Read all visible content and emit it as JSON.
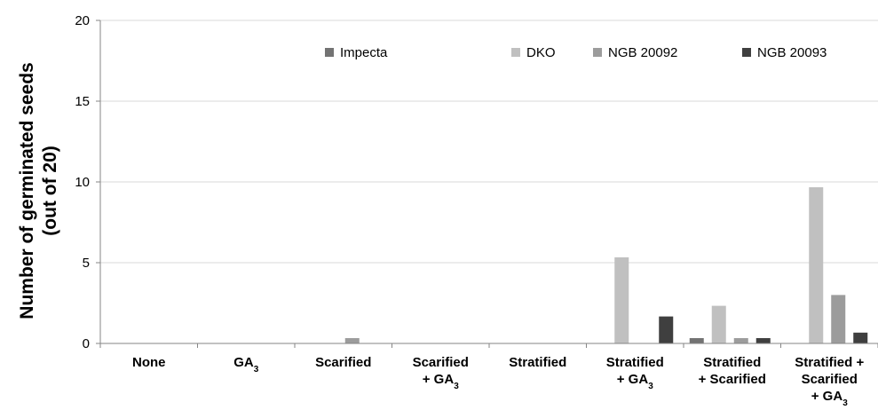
{
  "chart_data": {
    "type": "bar",
    "ylabel_lines": [
      "Number of germinated seeds",
      "(out of 20)"
    ],
    "ylim": [
      0,
      20
    ],
    "yticks": [
      0,
      5,
      10,
      15,
      20
    ],
    "grid": true,
    "legend_placement": "top-right",
    "categories": [
      {
        "lines": [
          [
            {
              "t": "None"
            }
          ]
        ]
      },
      {
        "lines": [
          [
            {
              "t": "GA"
            },
            {
              "t": "3",
              "sub": true
            }
          ]
        ]
      },
      {
        "lines": [
          [
            {
              "t": "Scarified"
            }
          ]
        ]
      },
      {
        "lines": [
          [
            {
              "t": "Scarified"
            }
          ],
          [
            {
              "t": "+ GA"
            },
            {
              "t": "3",
              "sub": true
            }
          ]
        ]
      },
      {
        "lines": [
          [
            {
              "t": "Stratified"
            }
          ]
        ]
      },
      {
        "lines": [
          [
            {
              "t": "Stratified"
            }
          ],
          [
            {
              "t": "+ GA"
            },
            {
              "t": "3",
              "sub": true
            }
          ]
        ]
      },
      {
        "lines": [
          [
            {
              "t": "Stratified"
            }
          ],
          [
            {
              "t": "+ Scarified"
            }
          ]
        ]
      },
      {
        "lines": [
          [
            {
              "t": "Stratified +"
            }
          ],
          [
            {
              "t": "Scarified"
            }
          ],
          [
            {
              "t": "+ GA"
            },
            {
              "t": "3",
              "sub": true
            }
          ]
        ]
      }
    ],
    "series": [
      {
        "name": "Impecta",
        "color": "#737373",
        "values": [
          0,
          0,
          0,
          0,
          0,
          0,
          0.33,
          0
        ]
      },
      {
        "name": "DKO",
        "color": "#c0c0c0",
        "values": [
          0,
          0,
          0,
          0,
          0,
          5.33,
          2.33,
          9.67
        ]
      },
      {
        "name": "NGB 20092",
        "color": "#9c9c9c",
        "values": [
          0,
          0,
          0.33,
          0,
          0,
          0,
          0.33,
          3
        ]
      },
      {
        "name": "NGB 20093",
        "color": "#3f3f3f",
        "values": [
          0,
          0,
          0,
          0,
          0,
          1.67,
          0.33,
          0.67
        ]
      }
    ],
    "gridline_color": "#d9d9d9",
    "axis_color": "#868686"
  }
}
